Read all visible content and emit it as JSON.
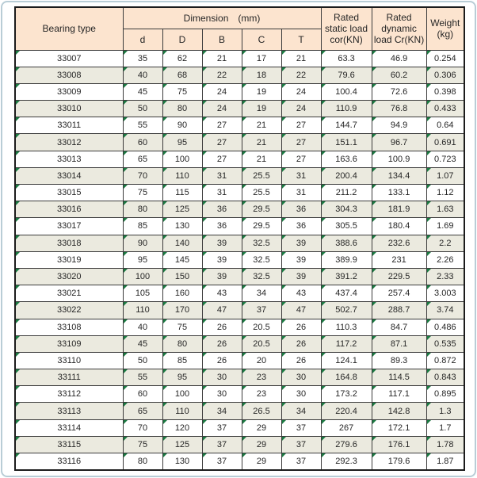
{
  "colors": {
    "header_bg": "#fce4cf",
    "alt_row_bg": "#ebeadf",
    "row_bg": "#ffffff",
    "grid_line": "#3c3c3c",
    "outer_border": "#1c1c1c",
    "frame_border": "#b9cdd6",
    "triangle": "#1b7a42",
    "text": "#262626"
  },
  "table": {
    "header": {
      "bearing_type": "Bearing type",
      "dimension": "Dimension　(mm)",
      "dim_cols": [
        "d",
        "D",
        "B",
        "C",
        "T"
      ],
      "static_load": "Rated static load cor(KN)",
      "dynamic_load": "Rated dynamic load Cr(KN)",
      "weight": "Weight (kg)"
    },
    "rows": [
      [
        "33007",
        "35",
        "62",
        "21",
        "17",
        "21",
        "63.3",
        "46.9",
        "0.254"
      ],
      [
        "33008",
        "40",
        "68",
        "22",
        "18",
        "22",
        "79.6",
        "60.2",
        "0.306"
      ],
      [
        "33009",
        "45",
        "75",
        "24",
        "19",
        "24",
        "100.4",
        "72.6",
        "0.398"
      ],
      [
        "33010",
        "50",
        "80",
        "24",
        "19",
        "24",
        "110.9",
        "76.8",
        "0.433"
      ],
      [
        "33011",
        "55",
        "90",
        "27",
        "21",
        "27",
        "144.7",
        "94.9",
        "0.64"
      ],
      [
        "33012",
        "60",
        "95",
        "27",
        "21",
        "27",
        "151.1",
        "96.7",
        "0.691"
      ],
      [
        "33013",
        "65",
        "100",
        "27",
        "21",
        "27",
        "163.6",
        "100.9",
        "0.723"
      ],
      [
        "33014",
        "70",
        "110",
        "31",
        "25.5",
        "31",
        "200.4",
        "134.4",
        "1.07"
      ],
      [
        "33015",
        "75",
        "115",
        "31",
        "25.5",
        "31",
        "211.2",
        "133.1",
        "1.12"
      ],
      [
        "33016",
        "80",
        "125",
        "36",
        "29.5",
        "36",
        "304.3",
        "181.9",
        "1.63"
      ],
      [
        "33017",
        "85",
        "130",
        "36",
        "29.5",
        "36",
        "305.5",
        "180.4",
        "1.69"
      ],
      [
        "33018",
        "90",
        "140",
        "39",
        "32.5",
        "39",
        "388.6",
        "232.6",
        "2.2"
      ],
      [
        "33019",
        "95",
        "145",
        "39",
        "32.5",
        "39",
        "389.9",
        "231",
        "2.26"
      ],
      [
        "33020",
        "100",
        "150",
        "39",
        "32.5",
        "39",
        "391.2",
        "229.5",
        "2.33"
      ],
      [
        "33021",
        "105",
        "160",
        "43",
        "34",
        "43",
        "437.4",
        "257.4",
        "3.003"
      ],
      [
        "33022",
        "110",
        "170",
        "47",
        "37",
        "47",
        "502.7",
        "288.7",
        "3.74"
      ],
      [
        "33108",
        "40",
        "75",
        "26",
        "20.5",
        "26",
        "110.3",
        "84.7",
        "0.486"
      ],
      [
        "33109",
        "45",
        "80",
        "26",
        "20.5",
        "26",
        "117.2",
        "87.1",
        "0.535"
      ],
      [
        "33110",
        "50",
        "85",
        "26",
        "20",
        "26",
        "124.1",
        "89.3",
        "0.872"
      ],
      [
        "33111",
        "55",
        "95",
        "30",
        "23",
        "30",
        "164.8",
        "114.5",
        "0.843"
      ],
      [
        "33112",
        "60",
        "100",
        "30",
        "23",
        "30",
        "173.2",
        "117.1",
        "0.895"
      ],
      [
        "33113",
        "65",
        "110",
        "34",
        "26.5",
        "34",
        "220.4",
        "142.8",
        "1.3"
      ],
      [
        "33114",
        "70",
        "120",
        "37",
        "29",
        "37",
        "267",
        "172.1",
        "1.7"
      ],
      [
        "33115",
        "75",
        "125",
        "37",
        "29",
        "37",
        "279.6",
        "176.1",
        "1.78"
      ],
      [
        "33116",
        "80",
        "130",
        "37",
        "29",
        "37",
        "292.3",
        "179.6",
        "1.87"
      ]
    ]
  }
}
